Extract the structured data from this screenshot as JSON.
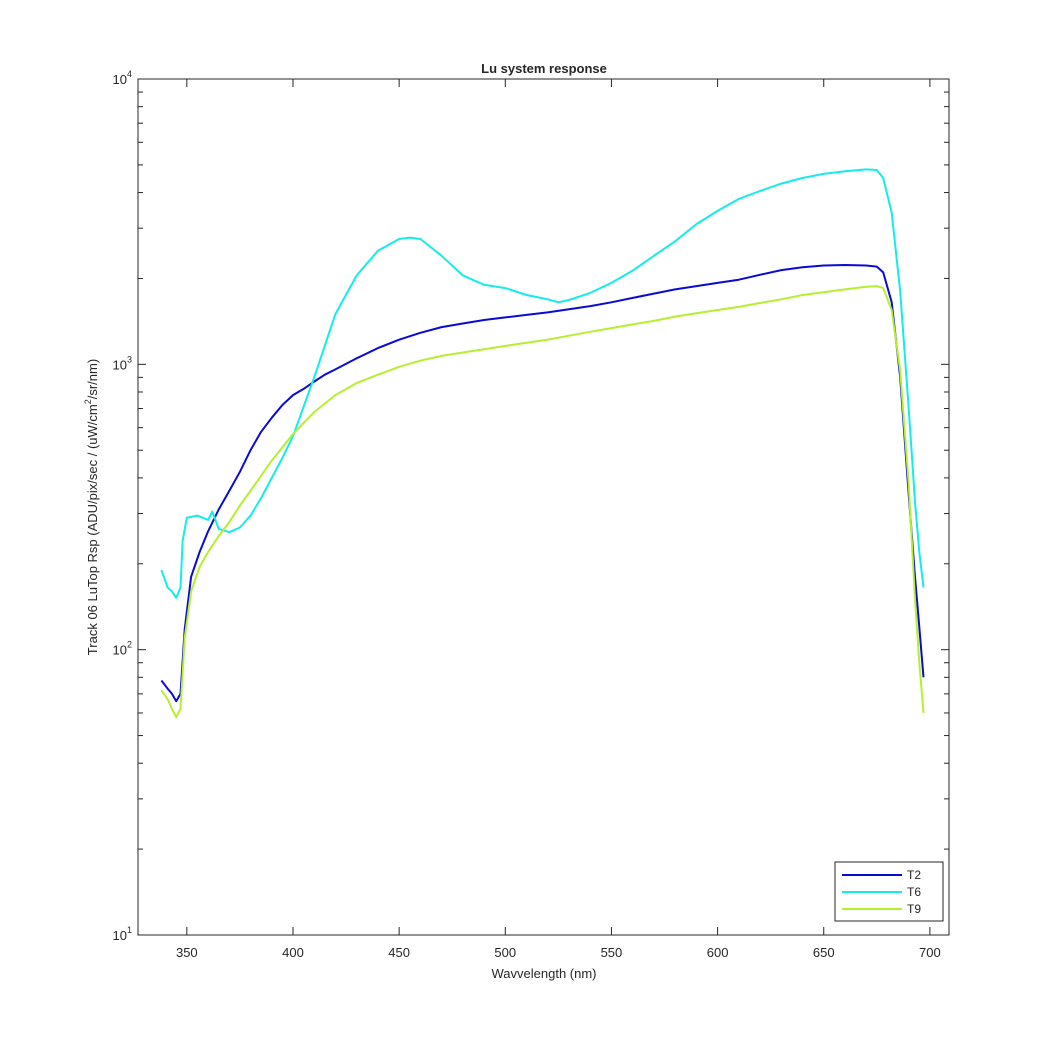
{
  "chart_data": {
    "type": "line",
    "title": "Lu system response",
    "xlabel": "Wavvelength (nm)",
    "ylabel": {
      "main": "Track 06 LuTop Rsp (ADU/pix/sec / (uW/cm",
      "sup": "2",
      "tail": "/sr/nm)"
    },
    "xlim": [
      327,
      709
    ],
    "ylim": [
      10,
      10000
    ],
    "yscale": "log",
    "xticks": [
      "350",
      "400",
      "450",
      "500",
      "550",
      "600",
      "650",
      "700"
    ],
    "yticks": [
      {
        "base": "10",
        "exp": "1"
      },
      {
        "base": "10",
        "exp": "2"
      },
      {
        "base": "10",
        "exp": "3"
      },
      {
        "base": "10",
        "exp": "4"
      }
    ],
    "grid": false,
    "legend_position": "bottom-right",
    "series": [
      {
        "name": "T2",
        "color": "#0a0ad6",
        "x": [
          338,
          341,
          343,
          345,
          347,
          349,
          352,
          356,
          360,
          365,
          370,
          375,
          380,
          385,
          390,
          395,
          400,
          405,
          410,
          415,
          420,
          430,
          440,
          450,
          460,
          470,
          480,
          490,
          500,
          510,
          520,
          530,
          540,
          550,
          560,
          570,
          580,
          590,
          600,
          610,
          620,
          630,
          640,
          650,
          660,
          670,
          675,
          678,
          682,
          686,
          690,
          693,
          695,
          697
        ],
        "y": [
          78,
          73,
          70,
          66,
          70,
          118,
          180,
          220,
          260,
          310,
          360,
          420,
          500,
          580,
          650,
          720,
          780,
          820,
          870,
          920,
          960,
          1050,
          1140,
          1220,
          1290,
          1350,
          1390,
          1430,
          1460,
          1490,
          1520,
          1560,
          1600,
          1650,
          1710,
          1770,
          1830,
          1880,
          1930,
          1980,
          2060,
          2140,
          2190,
          2220,
          2230,
          2220,
          2200,
          2100,
          1650,
          900,
          350,
          180,
          120,
          80
        ]
      },
      {
        "name": "T6",
        "color": "#14ecec",
        "x": [
          338,
          341,
          343,
          345,
          347,
          348,
          350,
          355,
          360,
          362,
          365,
          370,
          375,
          380,
          385,
          390,
          395,
          400,
          410,
          420,
          430,
          440,
          450,
          455,
          460,
          470,
          480,
          490,
          500,
          510,
          515,
          520,
          525,
          530,
          540,
          550,
          560,
          570,
          580,
          590,
          600,
          610,
          620,
          630,
          640,
          650,
          660,
          670,
          675,
          678,
          682,
          686,
          690,
          693,
          695,
          697
        ],
        "y": [
          190,
          165,
          160,
          152,
          165,
          240,
          290,
          295,
          285,
          305,
          265,
          258,
          268,
          295,
          340,
          400,
          470,
          560,
          900,
          1500,
          2050,
          2500,
          2750,
          2780,
          2750,
          2400,
          2050,
          1900,
          1850,
          1750,
          1720,
          1690,
          1650,
          1680,
          1780,
          1930,
          2130,
          2400,
          2700,
          3100,
          3450,
          3800,
          4050,
          4300,
          4500,
          4650,
          4750,
          4820,
          4800,
          4500,
          3400,
          1800,
          700,
          330,
          220,
          165
        ]
      },
      {
        "name": "T9",
        "color": "#b5ef2e",
        "x": [
          338,
          341,
          343,
          345,
          347,
          349,
          352,
          356,
          360,
          365,
          370,
          375,
          380,
          390,
          400,
          410,
          420,
          430,
          440,
          450,
          460,
          470,
          480,
          490,
          500,
          510,
          520,
          530,
          540,
          550,
          560,
          570,
          580,
          590,
          600,
          610,
          620,
          630,
          640,
          650,
          660,
          670,
          675,
          678,
          682,
          686,
          690,
          693,
          695,
          697
        ],
        "y": [
          72,
          67,
          62,
          58,
          62,
          110,
          160,
          195,
          220,
          250,
          280,
          320,
          360,
          460,
          570,
          680,
          780,
          860,
          920,
          980,
          1030,
          1070,
          1100,
          1130,
          1160,
          1190,
          1220,
          1260,
          1300,
          1340,
          1380,
          1420,
          1470,
          1510,
          1550,
          1590,
          1640,
          1690,
          1750,
          1790,
          1830,
          1870,
          1880,
          1850,
          1550,
          950,
          380,
          150,
          90,
          60
        ]
      }
    ]
  }
}
